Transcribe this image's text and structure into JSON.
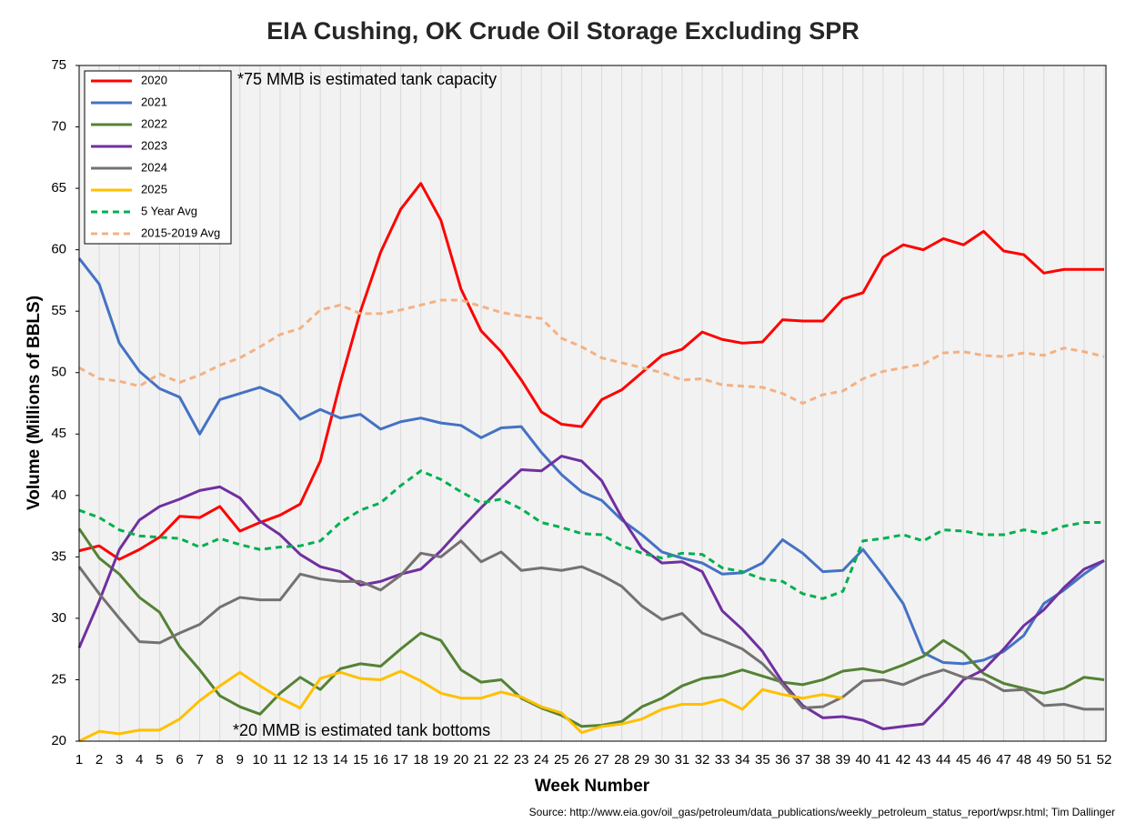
{
  "chart_data": {
    "type": "line",
    "title": "EIA Cushing, OK Crude Oil Storage Excluding SPR",
    "x_label": "Week Number",
    "y_label": "Volume (Millions of BBLS)",
    "annotations": [
      "*75 MMB is estimated tank capacity",
      "*20 MMB is estimated tank bottoms"
    ],
    "source": "Source: http://www.eia.gov/oil_gas/petroleum/data_publications/weekly_petroleum_status_report/wpsr.html; Tim Dallinger",
    "x": [
      1,
      2,
      3,
      4,
      5,
      6,
      7,
      8,
      9,
      10,
      11,
      12,
      13,
      14,
      15,
      16,
      17,
      18,
      19,
      20,
      21,
      22,
      23,
      24,
      25,
      26,
      27,
      28,
      29,
      30,
      31,
      32,
      33,
      34,
      35,
      36,
      37,
      38,
      39,
      40,
      41,
      42,
      43,
      44,
      45,
      46,
      47,
      48,
      49,
      50,
      51,
      52
    ],
    "xlim": [
      1,
      52
    ],
    "xticks": [
      1,
      2,
      3,
      4,
      5,
      6,
      7,
      8,
      9,
      10,
      11,
      12,
      13,
      14,
      15,
      16,
      17,
      18,
      19,
      20,
      21,
      22,
      23,
      24,
      25,
      26,
      27,
      28,
      29,
      30,
      31,
      32,
      33,
      34,
      35,
      36,
      37,
      38,
      39,
      40,
      41,
      42,
      43,
      44,
      45,
      46,
      47,
      48,
      49,
      50,
      51,
      52
    ],
    "ylim": [
      20,
      75
    ],
    "yticks": [
      20,
      25,
      30,
      35,
      40,
      45,
      50,
      55,
      60,
      65,
      70,
      75
    ],
    "grid": "x",
    "legend": "top-left",
    "series": [
      {
        "name": "2020",
        "color": "#ff0000",
        "dashed": false,
        "values": [
          35.5,
          35.9,
          34.8,
          35.6,
          36.6,
          38.3,
          38.2,
          39.1,
          37.1,
          37.8,
          38.4,
          39.3,
          42.8,
          49.2,
          55.0,
          59.8,
          63.3,
          65.4,
          62.4,
          56.8,
          53.4,
          51.7,
          49.4,
          46.8,
          45.8,
          45.6,
          47.8,
          48.6,
          50.0,
          51.4,
          51.9,
          53.3,
          52.7,
          52.4,
          52.5,
          54.3,
          54.2,
          54.2,
          56.0,
          56.5,
          59.4,
          60.4,
          60.0,
          60.9,
          60.4,
          61.5,
          59.9,
          59.6,
          58.1,
          58.4,
          58.4,
          58.4
        ]
      },
      {
        "name": "2021",
        "color": "#4472c4",
        "dashed": false,
        "values": [
          59.3,
          57.2,
          52.4,
          50.1,
          48.7,
          48.0,
          45.0,
          47.8,
          48.3,
          48.8,
          48.1,
          46.2,
          47.0,
          46.3,
          46.6,
          45.4,
          46.0,
          46.3,
          45.9,
          45.7,
          44.7,
          45.5,
          45.6,
          43.5,
          41.7,
          40.3,
          39.6,
          38.0,
          36.8,
          35.4,
          34.9,
          34.5,
          33.6,
          33.7,
          34.5,
          36.4,
          35.3,
          33.8,
          33.9,
          35.6,
          33.5,
          31.2,
          27.2,
          26.4,
          26.3,
          26.6,
          27.3,
          28.6,
          31.2,
          32.3,
          33.6,
          34.7
        ]
      },
      {
        "name": "2022",
        "color": "#548235",
        "dashed": false,
        "values": [
          37.3,
          34.9,
          33.6,
          31.7,
          30.5,
          27.7,
          25.8,
          23.7,
          22.8,
          22.2,
          23.9,
          25.2,
          24.2,
          25.9,
          26.3,
          26.1,
          27.5,
          28.8,
          28.2,
          25.8,
          24.8,
          25.0,
          23.5,
          22.7,
          22.1,
          21.2,
          21.3,
          21.6,
          22.8,
          23.5,
          24.5,
          25.1,
          25.3,
          25.8,
          25.3,
          24.8,
          24.6,
          25.0,
          25.7,
          25.9,
          25.6,
          26.2,
          26.9,
          28.2,
          27.2,
          25.5,
          24.7,
          24.3,
          23.9,
          24.3,
          25.2,
          25.0
        ]
      },
      {
        "name": "2023",
        "color": "#7030a0",
        "dashed": false,
        "values": [
          27.6,
          31.4,
          35.6,
          38.0,
          39.1,
          39.7,
          40.4,
          40.7,
          39.8,
          37.9,
          36.8,
          35.2,
          34.2,
          33.8,
          32.7,
          33.0,
          33.6,
          34.0,
          35.5,
          37.3,
          39.0,
          40.6,
          42.1,
          42.0,
          43.2,
          42.8,
          41.2,
          38.2,
          35.7,
          34.5,
          34.6,
          33.8,
          30.6,
          29.1,
          27.3,
          24.8,
          22.9,
          21.9,
          22.0,
          21.7,
          21.0,
          21.2,
          21.4,
          23.1,
          25.0,
          25.8,
          27.5,
          29.4,
          30.7,
          32.5,
          34.0,
          34.7
        ]
      },
      {
        "name": "2024",
        "color": "#767171",
        "dashed": false,
        "values": [
          34.2,
          32.0,
          30.0,
          28.1,
          28.0,
          28.8,
          29.5,
          30.9,
          31.7,
          31.5,
          31.5,
          33.6,
          33.2,
          33.0,
          33.0,
          32.3,
          33.5,
          35.3,
          35.0,
          36.3,
          34.6,
          35.4,
          33.9,
          34.1,
          33.9,
          34.2,
          33.5,
          32.6,
          31.0,
          29.9,
          30.4,
          28.8,
          28.2,
          27.5,
          26.3,
          24.6,
          22.7,
          22.8,
          23.6,
          24.9,
          25.0,
          24.6,
          25.3,
          25.8,
          25.2,
          25.0,
          24.1,
          24.2,
          22.9,
          23.0,
          22.6,
          22.6
        ]
      },
      {
        "name": "2025",
        "color": "#ffc000",
        "dashed": false,
        "values": [
          20.0,
          20.8,
          20.6,
          20.9,
          20.9,
          21.8,
          23.3,
          24.5,
          25.6,
          24.5,
          23.5,
          22.7,
          25.1,
          25.6,
          25.1,
          25.0,
          25.7,
          24.9,
          23.9,
          23.5,
          23.5,
          24.0,
          23.6,
          22.8,
          22.3,
          20.7,
          21.2,
          21.4,
          21.8,
          22.6,
          23.0,
          23.0,
          23.4,
          22.6,
          24.2,
          23.8,
          23.5,
          23.8,
          23.5,
          null,
          null,
          null,
          null,
          null,
          null,
          null,
          null,
          null,
          null,
          null,
          null,
          null
        ]
      },
      {
        "name": "5 Year Avg",
        "color": "#00b050",
        "dashed": true,
        "values": [
          38.8,
          38.2,
          37.2,
          36.7,
          36.6,
          36.5,
          35.8,
          36.5,
          36.0,
          35.6,
          35.8,
          35.9,
          36.3,
          37.8,
          38.8,
          39.4,
          40.8,
          42.0,
          41.3,
          40.3,
          39.4,
          39.7,
          38.9,
          37.8,
          37.4,
          36.9,
          36.8,
          35.9,
          35.3,
          34.9,
          35.3,
          35.2,
          34.1,
          33.8,
          33.2,
          33.0,
          32.0,
          31.6,
          32.2,
          36.3,
          36.5,
          36.8,
          36.3,
          37.2,
          37.1,
          36.8,
          36.8,
          37.2,
          36.9,
          37.5,
          37.8,
          37.8
        ]
      },
      {
        "name": "2015-2019 Avg",
        "color": "#f4b183",
        "dashed": true,
        "values": [
          50.4,
          49.5,
          49.3,
          48.9,
          49.9,
          49.2,
          49.8,
          50.6,
          51.2,
          52.1,
          53.1,
          53.6,
          55.1,
          55.5,
          54.8,
          54.8,
          55.1,
          55.5,
          55.9,
          55.9,
          55.4,
          54.9,
          54.6,
          54.4,
          52.8,
          52.1,
          51.2,
          50.8,
          50.4,
          50.0,
          49.4,
          49.5,
          49.0,
          48.9,
          48.8,
          48.3,
          47.5,
          48.2,
          48.5,
          49.5,
          50.1,
          50.4,
          50.7,
          51.6,
          51.7,
          51.4,
          51.3,
          51.6,
          51.4,
          52.0,
          51.7,
          51.3
        ]
      }
    ]
  }
}
